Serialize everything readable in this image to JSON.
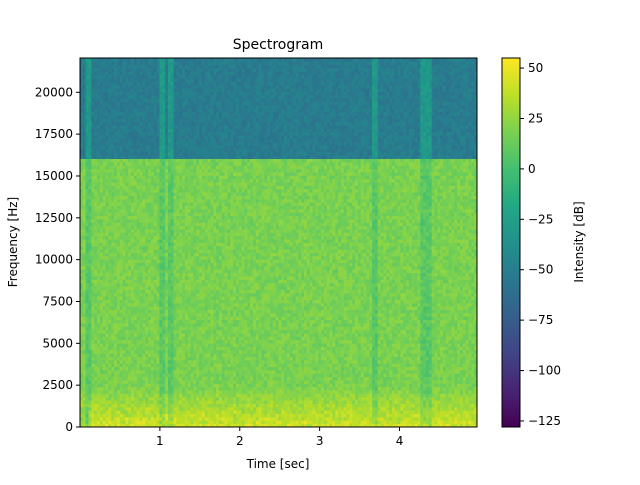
{
  "chart_data": {
    "type": "heatmap",
    "title": "Spectrogram",
    "xlabel": "Time [sec]",
    "ylabel": "Frequency [Hz]",
    "xlim": [
      0.0,
      4.97
    ],
    "ylim": [
      0,
      22050
    ],
    "x_ticks": [
      1,
      2,
      3,
      4
    ],
    "x_tick_labels": [
      "1",
      "2",
      "3",
      "4"
    ],
    "y_ticks": [
      0,
      2500,
      5000,
      7500,
      10000,
      12500,
      15000,
      17500,
      20000
    ],
    "y_tick_labels": [
      "0",
      "2500",
      "5000",
      "7500",
      "10000",
      "12500",
      "15000",
      "17500",
      "20000"
    ],
    "colorbar": {
      "label": "Intensity [dB]",
      "colormap": "viridis",
      "range": [
        -128,
        55
      ],
      "ticks": [
        50,
        25,
        0,
        -25,
        -50,
        -75,
        -100,
        -125
      ],
      "tick_labels": [
        "50",
        "25",
        "0",
        "−25",
        "−50",
        "−75",
        "−100",
        "−125"
      ]
    },
    "features": {
      "lowpass_cutoff_hz": 16000,
      "level_below_cutoff_db": 18,
      "level_above_cutoff_db": -52,
      "low_band_peak_db": 48,
      "transient_times_sec": [
        0.12,
        1.02,
        1.12,
        3.68,
        4.3,
        4.37
      ]
    }
  }
}
